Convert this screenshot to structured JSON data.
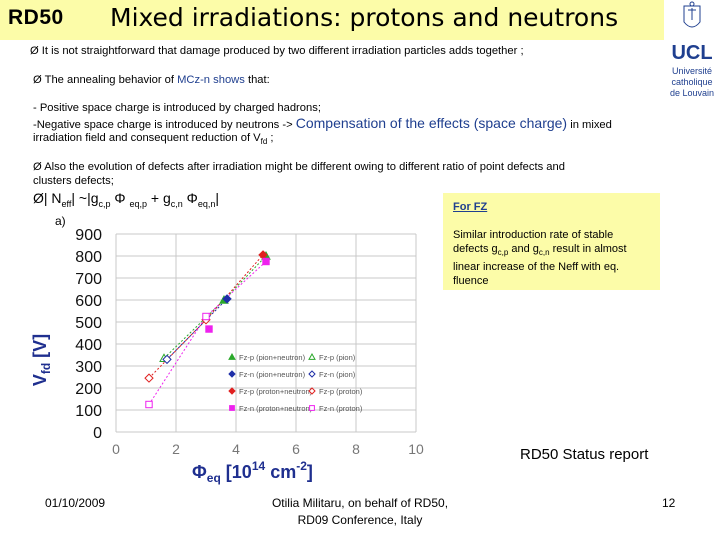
{
  "header": {
    "rd50": "RD50",
    "title": "Mixed irradiations: protons and neutrons"
  },
  "logo": {
    "ucl": "UCL",
    "line1": "Université",
    "line2": "catholique",
    "line3": "de Louvain"
  },
  "bullets": {
    "b1": "Ø  It is not straightforward that damage produced by two different irradiation particles adds together ;",
    "b2a": "Ø The annealing behavior of ",
    "b2b": "MCz-n shows",
    "b2c": " that:",
    "b3": "- Positive space charge is introduced by charged hadrons;",
    "b4a": "-Negative space charge is introduced by neutrons -> ",
    "b4b": "Compensation of the effects (space charge)",
    "b4c": " in mixed",
    "b5": "irradiation field  and consequent reduction of V",
    "b5sub": "fd",
    "b5end": " ;",
    "b6": "Ø  Also the evolution of defects after irradiation might be different owing to different ratio of point defects and",
    "b7": "clusters defects;"
  },
  "formula": {
    "lead": "Ø| N",
    "eff": "eff",
    "mid": "| ~|g",
    "cp": "c,p",
    "phi1": " Φ ",
    "eqp": "eq,p",
    "plus": " + g",
    "cn": "c,n",
    "phi2": " Φ",
    "eqn": "eq,n",
    "end": "|"
  },
  "note": {
    "title": "For FZ",
    "l1": "Similar introduction rate of stable",
    "l2a": "defects g",
    "l2sub1": "c,p",
    "l2b": " and g",
    "l2sub2": "c,n",
    "l2c": " result in almost",
    "l3": "linear increase of the Neff with eq.",
    "l4": "fluence"
  },
  "status_report": "RD50 Status report",
  "footer": {
    "date": "01/10/2009",
    "author1": "Otilia Militaru, on behalf of RD50,",
    "author2": "RD09 Conference, Italy",
    "page": "12"
  },
  "chart_data": {
    "type": "scatter",
    "panel_label": "a)",
    "ylabel": "V",
    "ylabel_sub": "fd",
    "ylabel_unit": " [V]",
    "xlabel_phi": "Φ",
    "xlabel_sub": "eq",
    "xlabel_rest": " [10",
    "xlabel_sup": "14",
    "xlabel_unit": " cm",
    "xlabel_sup2": "-2",
    "xlabel_end": "]",
    "xlim": [
      0,
      10
    ],
    "ylim": [
      0,
      900
    ],
    "xticks": [
      "0",
      "2",
      "4",
      "6",
      "8",
      "10"
    ],
    "yticks": [
      "0",
      "100",
      "200",
      "300",
      "400",
      "500",
      "600",
      "700",
      "800",
      "900"
    ],
    "grid": true,
    "legend_position": "inside bottom-center",
    "series": [
      {
        "name": "Fz-p (pion+neutron)",
        "color": "#2aa82a",
        "marker": "triangle",
        "filled": true,
        "points": [
          [
            3.6,
            600
          ],
          [
            5.0,
            800
          ]
        ]
      },
      {
        "name": "Fz-n (pion+neutron)",
        "color": "#1f2fa8",
        "marker": "diamond",
        "filled": true,
        "points": [
          [
            3.7,
            605
          ]
        ]
      },
      {
        "name": "Fz-p (proton+neutron)",
        "color": "#e02020",
        "marker": "diamond",
        "filled": true,
        "points": [
          [
            4.9,
            805
          ]
        ]
      },
      {
        "name": "Fz-n (proton+neutron)",
        "color": "#ee22ee",
        "marker": "square",
        "filled": true,
        "points": [
          [
            3.1,
            468
          ],
          [
            5.0,
            775
          ]
        ]
      },
      {
        "name": "Fz-p (pion)",
        "color": "#2aa82a",
        "marker": "triangle",
        "filled": false,
        "points": [
          [
            1.6,
            335
          ]
        ]
      },
      {
        "name": "Fz-n (pion)",
        "color": "#1f2fa8",
        "marker": "diamond",
        "filled": false,
        "points": [
          [
            1.7,
            330
          ]
        ]
      },
      {
        "name": "Fz-p (proton)",
        "color": "#e02020",
        "marker": "diamond",
        "filled": false,
        "points": [
          [
            1.1,
            245
          ],
          [
            3.0,
            510
          ]
        ]
      },
      {
        "name": "Fz-n (proton)",
        "color": "#ee22ee",
        "marker": "square",
        "filled": false,
        "points": [
          [
            1.1,
            125
          ],
          [
            3.0,
            525
          ]
        ]
      }
    ],
    "fit_lines": [
      {
        "color": "#2aa82a",
        "points": [
          [
            1.6,
            335
          ],
          [
            3.6,
            600
          ],
          [
            5.0,
            800
          ]
        ]
      },
      {
        "color": "#1f2fa8",
        "points": [
          [
            1.7,
            330
          ],
          [
            3.7,
            605
          ]
        ]
      },
      {
        "color": "#e02020",
        "points": [
          [
            1.1,
            245
          ],
          [
            3.0,
            510
          ],
          [
            4.9,
            805
          ]
        ]
      },
      {
        "color": "#ee22ee",
        "points": [
          [
            1.1,
            125
          ],
          [
            3.0,
            525
          ],
          [
            5.0,
            775
          ]
        ]
      }
    ]
  }
}
